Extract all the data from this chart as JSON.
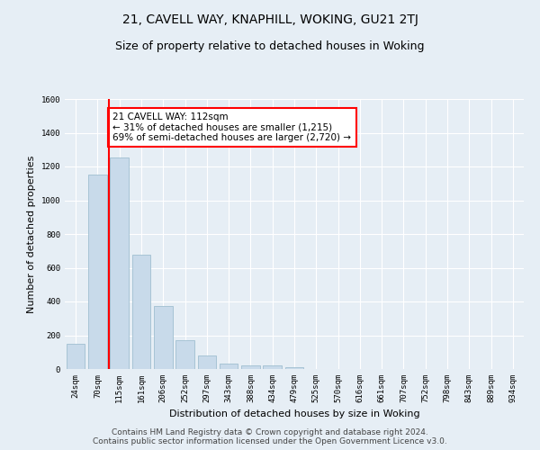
{
  "title": "21, CAVELL WAY, KNAPHILL, WOKING, GU21 2TJ",
  "subtitle": "Size of property relative to detached houses in Woking",
  "xlabel": "Distribution of detached houses by size in Woking",
  "ylabel": "Number of detached properties",
  "categories": [
    "24sqm",
    "70sqm",
    "115sqm",
    "161sqm",
    "206sqm",
    "252sqm",
    "297sqm",
    "343sqm",
    "388sqm",
    "434sqm",
    "479sqm",
    "525sqm",
    "570sqm",
    "616sqm",
    "661sqm",
    "707sqm",
    "752sqm",
    "798sqm",
    "843sqm",
    "889sqm",
    "934sqm"
  ],
  "values": [
    150,
    1150,
    1255,
    680,
    375,
    170,
    80,
    30,
    20,
    20,
    10,
    0,
    0,
    0,
    0,
    0,
    0,
    0,
    0,
    0,
    0
  ],
  "bar_color": "#c8daea",
  "bar_edge_color": "#a0bfd0",
  "bar_width": 0.85,
  "property_line_color": "red",
  "annotation_text": "21 CAVELL WAY: 112sqm\n← 31% of detached houses are smaller (1,215)\n69% of semi-detached houses are larger (2,720) →",
  "annotation_box_color": "white",
  "annotation_box_edge_color": "red",
  "ylim": [
    0,
    1600
  ],
  "yticks": [
    0,
    200,
    400,
    600,
    800,
    1000,
    1200,
    1400,
    1600
  ],
  "footer_line1": "Contains HM Land Registry data © Crown copyright and database right 2024.",
  "footer_line2": "Contains public sector information licensed under the Open Government Licence v3.0.",
  "background_color": "#e6eef5",
  "plot_background_color": "#e6eef5",
  "grid_color": "white",
  "title_fontsize": 10,
  "subtitle_fontsize": 9,
  "axis_label_fontsize": 8,
  "tick_fontsize": 6.5,
  "annotation_fontsize": 7.5,
  "footer_fontsize": 6.5
}
